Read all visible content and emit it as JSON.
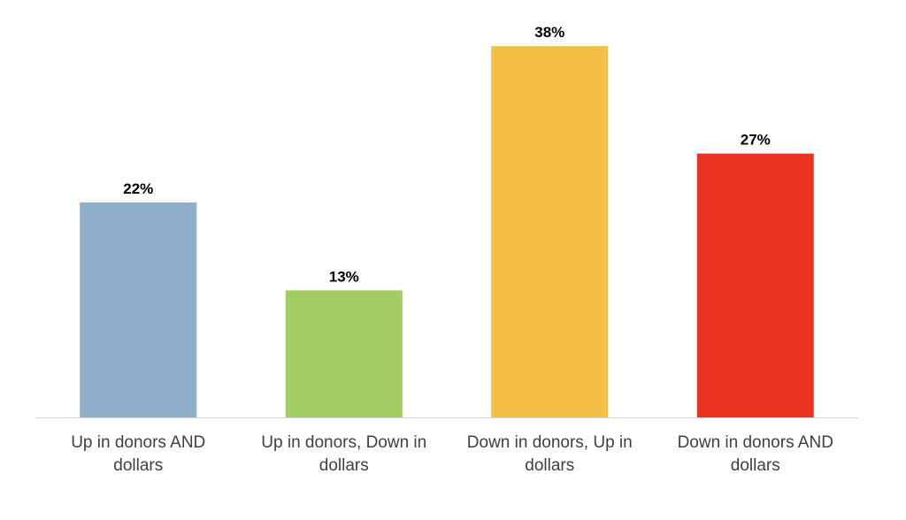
{
  "chart_data": {
    "type": "bar",
    "title": "",
    "xlabel": "",
    "ylabel": "",
    "categories": [
      "Up in donors AND dollars",
      "Up in donors, Down in dollars",
      "Down in donors, Up in dollars",
      "Down in donors AND dollars"
    ],
    "category_lines": [
      [
        "Up in donors AND",
        "dollars"
      ],
      [
        "Up in donors, Down in",
        "dollars"
      ],
      [
        "Down in donors, Up in",
        "dollars"
      ],
      [
        "Down in donors AND",
        "dollars"
      ]
    ],
    "values": [
      22,
      13,
      38,
      27
    ],
    "data_labels": [
      "22%",
      "13%",
      "38%",
      "27%"
    ],
    "colors": [
      "#8eaec9",
      "#a2cd64",
      "#f4bf44",
      "#ea3323"
    ],
    "ylim": [
      0,
      40
    ],
    "grid": false,
    "legend": "none",
    "value_unit": "%"
  }
}
